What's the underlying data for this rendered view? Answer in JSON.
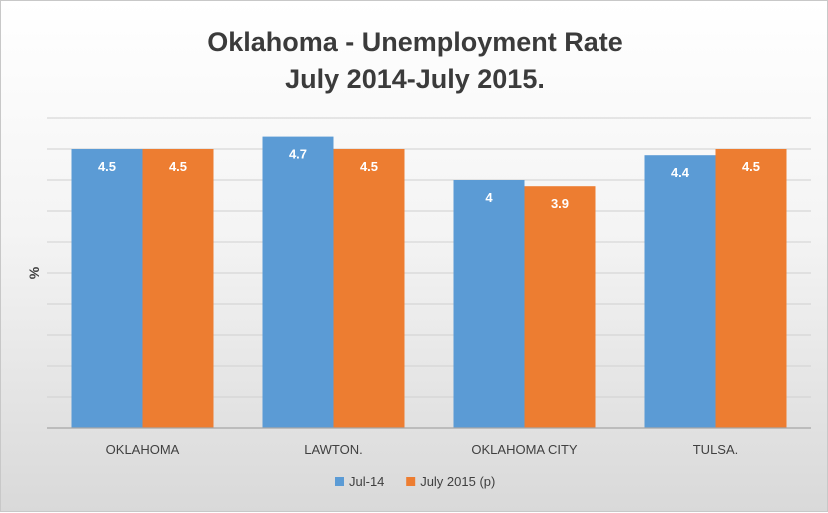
{
  "chart_data": {
    "type": "bar",
    "title": [
      "Oklahoma - Unemployment Rate",
      "July 2014-July 2015."
    ],
    "ylabel": "%",
    "xlabel": "",
    "categories": [
      "OKLAHOMA",
      "LAWTON.",
      "OKLAHOMA CITY",
      "TULSA."
    ],
    "series": [
      {
        "name": "Jul-14",
        "values": [
          4.5,
          4.7,
          4,
          4.4
        ],
        "color": "#5b9bd5"
      },
      {
        "name": "July 2015 (p)",
        "values": [
          4.5,
          4.5,
          3.9,
          4.5
        ],
        "color": "#ed7d31"
      }
    ],
    "ylim": [
      0,
      5
    ],
    "grid": true,
    "legend": "bottom"
  }
}
